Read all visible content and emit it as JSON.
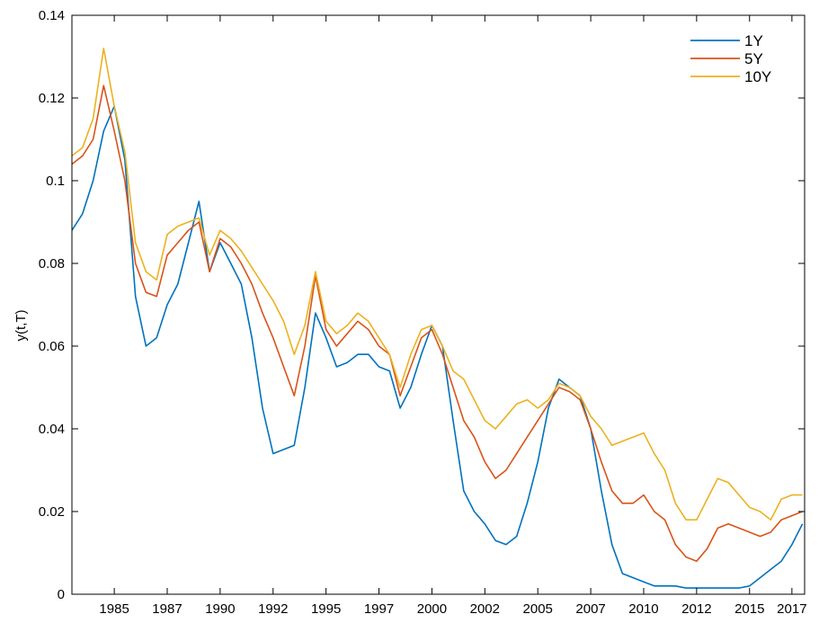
{
  "chart_data": {
    "type": "line",
    "title": "",
    "xlabel": "",
    "ylabel": "y(t,T)",
    "ylim": [
      0,
      0.14
    ],
    "yticks": [
      "0",
      "0.02",
      "0.04",
      "0.06",
      "0.08",
      "0.1",
      "0.12",
      "0.14"
    ],
    "yticks_values": [
      0,
      0.02,
      0.04,
      0.06,
      0.08,
      0.1,
      0.12,
      0.14
    ],
    "xlim": [
      1983.0,
      2017.6
    ],
    "xticks": [
      "1985",
      "1987",
      "1990",
      "1992",
      "1995",
      "1997",
      "2000",
      "2002",
      "2005",
      "2007",
      "2010",
      "2012",
      "2015",
      "2017"
    ],
    "xticks_values": [
      1985.0,
      1987.5,
      1990.0,
      1992.5,
      1995.0,
      1997.5,
      2000.0,
      2002.5,
      2005.0,
      2007.5,
      2010.0,
      2012.5,
      2015.0,
      2017.0
    ],
    "legend": {
      "position": "top-right"
    },
    "grid": false,
    "x": [
      1983.0,
      1983.5,
      1984.0,
      1984.5,
      1985.0,
      1985.5,
      1986.0,
      1986.5,
      1987.0,
      1987.5,
      1988.0,
      1988.5,
      1989.0,
      1989.5,
      1990.0,
      1990.5,
      1991.0,
      1991.5,
      1992.0,
      1992.5,
      1993.0,
      1993.5,
      1994.0,
      1994.5,
      1995.0,
      1995.5,
      1996.0,
      1996.5,
      1997.0,
      1997.5,
      1998.0,
      1998.5,
      1999.0,
      1999.5,
      2000.0,
      2000.5,
      2001.0,
      2001.5,
      2002.0,
      2002.5,
      2003.0,
      2003.5,
      2004.0,
      2004.5,
      2005.0,
      2005.5,
      2006.0,
      2006.5,
      2007.0,
      2007.5,
      2008.0,
      2008.5,
      2009.0,
      2009.5,
      2010.0,
      2010.5,
      2011.0,
      2011.5,
      2012.0,
      2012.5,
      2013.0,
      2013.5,
      2014.0,
      2014.5,
      2015.0,
      2015.5,
      2016.0,
      2016.5,
      2017.0,
      2017.5
    ],
    "series": [
      {
        "name": "1Y",
        "color": "#0072BD",
        "values": [
          0.088,
          0.092,
          0.1,
          0.112,
          0.118,
          0.105,
          0.072,
          0.06,
          0.062,
          0.07,
          0.075,
          0.085,
          0.095,
          0.078,
          0.085,
          0.08,
          0.075,
          0.062,
          0.045,
          0.034,
          0.035,
          0.036,
          0.05,
          0.068,
          0.062,
          0.055,
          0.056,
          0.058,
          0.058,
          0.055,
          0.054,
          0.045,
          0.05,
          0.058,
          0.065,
          0.06,
          0.042,
          0.025,
          0.02,
          0.017,
          0.013,
          0.012,
          0.014,
          0.022,
          0.032,
          0.045,
          0.052,
          0.05,
          0.048,
          0.04,
          0.025,
          0.012,
          0.005,
          0.004,
          0.003,
          0.002,
          0.002,
          0.002,
          0.0015,
          0.0015,
          0.0015,
          0.0015,
          0.0015,
          0.0015,
          0.002,
          0.004,
          0.006,
          0.008,
          0.012,
          0.017
        ]
      },
      {
        "name": "5Y",
        "color": "#D95319",
        "values": [
          0.104,
          0.106,
          0.11,
          0.123,
          0.112,
          0.1,
          0.08,
          0.073,
          0.072,
          0.082,
          0.085,
          0.088,
          0.09,
          0.078,
          0.086,
          0.084,
          0.08,
          0.075,
          0.068,
          0.062,
          0.055,
          0.048,
          0.06,
          0.077,
          0.064,
          0.06,
          0.063,
          0.066,
          0.064,
          0.06,
          0.058,
          0.048,
          0.055,
          0.062,
          0.064,
          0.058,
          0.05,
          0.042,
          0.038,
          0.032,
          0.028,
          0.03,
          0.034,
          0.038,
          0.042,
          0.046,
          0.05,
          0.049,
          0.047,
          0.04,
          0.032,
          0.025,
          0.022,
          0.022,
          0.024,
          0.02,
          0.018,
          0.012,
          0.009,
          0.008,
          0.011,
          0.016,
          0.017,
          0.016,
          0.015,
          0.014,
          0.015,
          0.018,
          0.019,
          0.02
        ]
      },
      {
        "name": "10Y",
        "color": "#EDB120",
        "values": [
          0.106,
          0.108,
          0.115,
          0.132,
          0.118,
          0.107,
          0.085,
          0.078,
          0.076,
          0.087,
          0.089,
          0.09,
          0.091,
          0.082,
          0.088,
          0.086,
          0.083,
          0.079,
          0.075,
          0.071,
          0.066,
          0.058,
          0.065,
          0.078,
          0.066,
          0.063,
          0.065,
          0.068,
          0.066,
          0.062,
          0.058,
          0.05,
          0.058,
          0.064,
          0.065,
          0.06,
          0.054,
          0.052,
          0.047,
          0.042,
          0.04,
          0.043,
          0.046,
          0.047,
          0.045,
          0.047,
          0.051,
          0.05,
          0.048,
          0.043,
          0.04,
          0.036,
          0.037,
          0.038,
          0.039,
          0.034,
          0.03,
          0.022,
          0.018,
          0.018,
          0.023,
          0.028,
          0.027,
          0.024,
          0.021,
          0.02,
          0.018,
          0.023,
          0.024,
          0.024
        ]
      }
    ]
  }
}
